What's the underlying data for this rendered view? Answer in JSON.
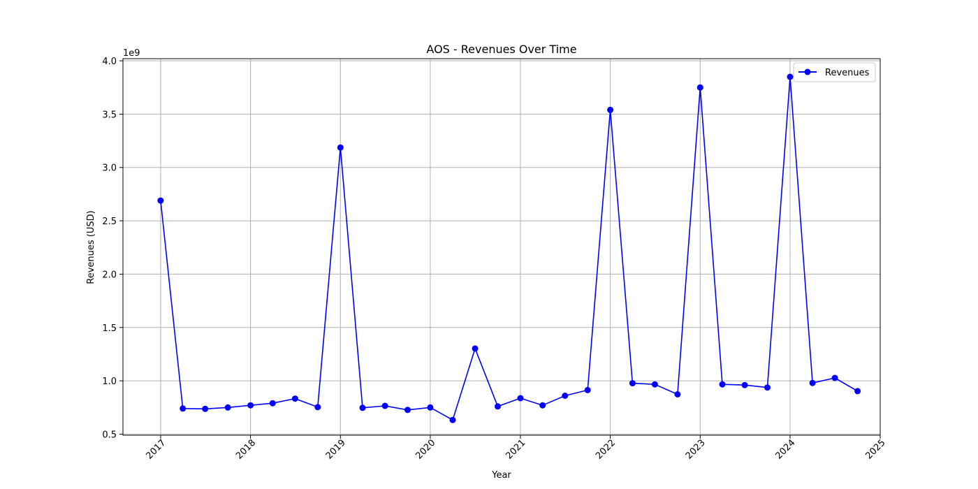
{
  "chart_data": {
    "type": "line",
    "title": "AOS - Revenues Over Time",
    "xlabel": "Year",
    "ylabel": "Revenues (USD)",
    "y_offset_label": "1e9",
    "xlim": [
      "2016-08-01",
      "2025-01-01"
    ],
    "ylim": [
      490000000,
      4020000000
    ],
    "x_ticks": [
      "2017",
      "2018",
      "2019",
      "2020",
      "2021",
      "2022",
      "2023",
      "2024",
      "2025"
    ],
    "y_ticks": [
      {
        "value": 500000000,
        "label": "0.5"
      },
      {
        "value": 1000000000,
        "label": "1.0"
      },
      {
        "value": 1500000000,
        "label": "1.5"
      },
      {
        "value": 2000000000,
        "label": "2.0"
      },
      {
        "value": 2500000000,
        "label": "2.5"
      },
      {
        "value": 3000000000,
        "label": "3.0"
      },
      {
        "value": 3500000000,
        "label": "3.5"
      },
      {
        "value": 4000000000,
        "label": "4.0"
      }
    ],
    "grid": true,
    "legend_position": "top-right",
    "series": [
      {
        "name": "Revenues",
        "color": "#0000ff",
        "marker": "circle",
        "points": [
          {
            "x": "2017-01-01",
            "y": 2690000000
          },
          {
            "x": "2017-04-01",
            "y": 740000000
          },
          {
            "x": "2017-07-01",
            "y": 737000000
          },
          {
            "x": "2017-10-01",
            "y": 750000000
          },
          {
            "x": "2018-01-01",
            "y": 770000000
          },
          {
            "x": "2018-04-01",
            "y": 790000000
          },
          {
            "x": "2018-07-01",
            "y": 833000000
          },
          {
            "x": "2018-10-01",
            "y": 753000000
          },
          {
            "x": "2019-01-01",
            "y": 3187000000
          },
          {
            "x": "2019-04-01",
            "y": 747000000
          },
          {
            "x": "2019-07-01",
            "y": 765000000
          },
          {
            "x": "2019-10-01",
            "y": 727000000
          },
          {
            "x": "2020-01-01",
            "y": 750000000
          },
          {
            "x": "2020-04-01",
            "y": 633000000
          },
          {
            "x": "2020-07-01",
            "y": 1303000000
          },
          {
            "x": "2020-10-01",
            "y": 760000000
          },
          {
            "x": "2021-01-01",
            "y": 837000000
          },
          {
            "x": "2021-04-01",
            "y": 770000000
          },
          {
            "x": "2021-07-01",
            "y": 860000000
          },
          {
            "x": "2021-10-01",
            "y": 913000000
          },
          {
            "x": "2022-01-01",
            "y": 3540000000
          },
          {
            "x": "2022-04-01",
            "y": 977000000
          },
          {
            "x": "2022-07-01",
            "y": 967000000
          },
          {
            "x": "2022-10-01",
            "y": 873000000
          },
          {
            "x": "2023-01-01",
            "y": 3750000000
          },
          {
            "x": "2023-04-01",
            "y": 967000000
          },
          {
            "x": "2023-07-01",
            "y": 960000000
          },
          {
            "x": "2023-10-01",
            "y": 937000000
          },
          {
            "x": "2024-01-01",
            "y": 3850000000
          },
          {
            "x": "2024-04-01",
            "y": 980000000
          },
          {
            "x": "2024-07-01",
            "y": 1027000000
          },
          {
            "x": "2024-10-01",
            "y": 903000000
          }
        ]
      }
    ]
  }
}
